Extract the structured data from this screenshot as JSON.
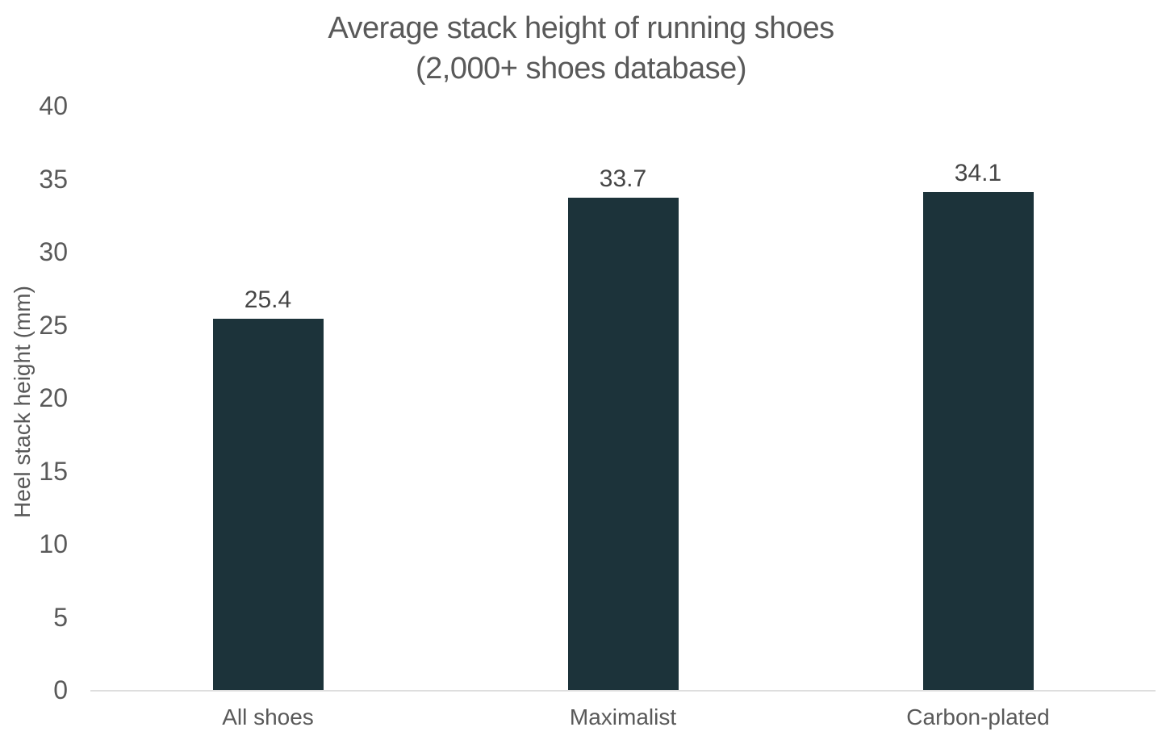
{
  "chart_data": {
    "type": "bar",
    "title": "Average stack height of running shoes (2,000+ shoes database)",
    "title_lines": [
      "Average stack height of running shoes",
      "(2,000+ shoes database)"
    ],
    "categories": [
      "All shoes",
      "Maximalist",
      "Carbon-plated"
    ],
    "values": [
      25.4,
      33.7,
      34.1
    ],
    "value_labels": [
      "25.4",
      "33.7",
      "34.1"
    ],
    "xlabel": "",
    "ylabel": "Heel stack height (mm)",
    "ylim": [
      0,
      40
    ],
    "yticks": [
      0,
      5,
      10,
      15,
      20,
      25,
      30,
      35,
      40
    ],
    "grid": false,
    "legend": "none",
    "colors": {
      "bar": "#1c333a",
      "axis_text": "#595959",
      "data_label": "#454545",
      "axis_line": "#dedede",
      "background": "#ffffff"
    }
  }
}
